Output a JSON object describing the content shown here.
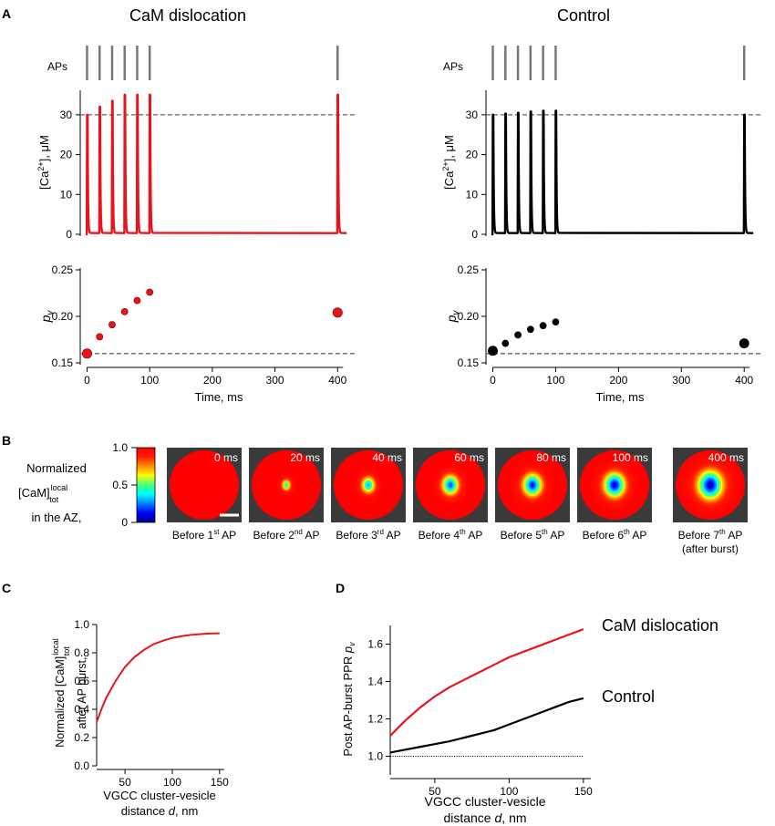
{
  "panel_labels": {
    "A": "A",
    "B": "B",
    "C": "C",
    "D": "D"
  },
  "colors": {
    "cam": "#e8141c",
    "control": "#000000",
    "ref_line": "#666666",
    "heatmap_bg": "#3a3a3a"
  },
  "chart_data": [
    {
      "id": "A_cam_ca",
      "type": "line",
      "title": "CaM dislocation",
      "row_label": "APs",
      "ap_times": [
        0,
        20,
        40,
        60,
        80,
        100,
        400
      ],
      "ylabel": "[Ca2+], μM",
      "xlim": [
        -8,
        420
      ],
      "ylim": [
        0,
        35
      ],
      "yticks": [
        0,
        10,
        20,
        30
      ],
      "ytick_labels": [
        "0",
        "10",
        "20",
        "30"
      ],
      "reference_y": 30,
      "peaks": [
        30,
        32,
        33.5,
        35,
        35,
        35,
        35
      ],
      "color": "#e8141c"
    },
    {
      "id": "A_control_ca",
      "type": "line",
      "title": "Control",
      "row_label": "APs",
      "ap_times": [
        0,
        20,
        40,
        60,
        80,
        100,
        400
      ],
      "ylabel": "[Ca2+], μM",
      "xlim": [
        -8,
        420
      ],
      "ylim": [
        0,
        35
      ],
      "yticks": [
        0,
        10,
        20,
        30
      ],
      "ytick_labels": [
        "0",
        "10",
        "20",
        "30"
      ],
      "reference_y": 30,
      "peaks": [
        30,
        30.3,
        30.5,
        30.8,
        31,
        31,
        30
      ],
      "color": "#000000"
    },
    {
      "id": "A_cam_pv",
      "type": "scatter",
      "ylabel": "pv",
      "xlabel": "Time, ms",
      "xlim": [
        -8,
        420
      ],
      "ylim": [
        0.15,
        0.25
      ],
      "xticks": [
        0,
        100,
        200,
        300,
        400
      ],
      "xtick_labels": [
        "0",
        "100",
        "200",
        "300",
        "400"
      ],
      "yticks": [
        0.15,
        0.2,
        0.25
      ],
      "ytick_labels": [
        "0.15",
        "0.20",
        "0.25"
      ],
      "reference_y": 0.16,
      "x": [
        0,
        20,
        40,
        60,
        80,
        100,
        400
      ],
      "y": [
        0.16,
        0.178,
        0.191,
        0.205,
        0.217,
        0.226,
        0.204
      ],
      "emphasized": [
        0,
        6
      ],
      "color": "#e8141c"
    },
    {
      "id": "A_control_pv",
      "type": "scatter",
      "ylabel": "pv",
      "xlabel": "Time, ms",
      "xlim": [
        -8,
        420
      ],
      "ylim": [
        0.15,
        0.25
      ],
      "xticks": [
        0,
        100,
        200,
        300,
        400
      ],
      "xtick_labels": [
        "0",
        "100",
        "200",
        "300",
        "400"
      ],
      "yticks": [
        0.15,
        0.2,
        0.25
      ],
      "ytick_labels": [
        "0.15",
        "0.20",
        "0.25"
      ],
      "reference_y": 0.16,
      "x": [
        0,
        20,
        40,
        60,
        80,
        100,
        400
      ],
      "y": [
        0.163,
        0.171,
        0.18,
        0.186,
        0.19,
        0.194,
        0.171
      ],
      "emphasized": [
        0,
        6
      ],
      "color": "#000000"
    },
    {
      "id": "B_heatmaps",
      "type": "heatmap",
      "ylabel_lines": [
        "Normalized",
        "[CaM]",
        "in the AZ,"
      ],
      "ylabel_sup": "local",
      "ylabel_sub": "tot",
      "colorbar_ticks": [
        0,
        0.5,
        1.0
      ],
      "colorbar_tick_labels": [
        "0",
        "0.5",
        "1.0"
      ],
      "frames": [
        {
          "time": "0 ms",
          "label_pre": "Before 1",
          "label_sup": "st",
          "label_post": " AP",
          "label_extra": "",
          "depletion": 0.0,
          "width": 0.0
        },
        {
          "time": "20 ms",
          "label_pre": "Before 2",
          "label_sup": "nd",
          "label_post": " AP",
          "label_extra": "",
          "depletion": 0.62,
          "width": 0.17
        },
        {
          "time": "40 ms",
          "label_pre": "Before 3",
          "label_sup": "rd",
          "label_post": " AP",
          "label_extra": "",
          "depletion": 0.72,
          "width": 0.24
        },
        {
          "time": "60 ms",
          "label_pre": "Before 4",
          "label_sup": "th",
          "label_post": " AP",
          "label_extra": "",
          "depletion": 0.82,
          "width": 0.29
        },
        {
          "time": "80 ms",
          "label_pre": "Before 5",
          "label_sup": "th",
          "label_post": " AP",
          "label_extra": "",
          "depletion": 0.88,
          "width": 0.33
        },
        {
          "time": "100 ms",
          "label_pre": "Before 6",
          "label_sup": "th",
          "label_post": " AP",
          "label_extra": "",
          "depletion": 0.93,
          "width": 0.36
        },
        {
          "time": "400 ms",
          "label_pre": "Before 7",
          "label_sup": "th",
          "label_post": " AP",
          "label_extra": "(after burst)",
          "depletion": 0.95,
          "width": 0.42
        }
      ]
    },
    {
      "id": "C_cam_vs_distance",
      "type": "line",
      "ylabel_lines": [
        "Normalized [CaM]",
        "after AP burst,"
      ],
      "ylabel_sup": "local",
      "ylabel_sub": "tot",
      "xlabel_lines": [
        "VGCC cluster-vesicle",
        "distance d, nm"
      ],
      "xlim": [
        20,
        155
      ],
      "ylim": [
        0,
        1.0
      ],
      "xticks": [
        50,
        100,
        150
      ],
      "xtick_labels": [
        "50",
        "100",
        "150"
      ],
      "yticks": [
        0,
        0.2,
        0.4,
        0.6,
        0.8,
        1.0
      ],
      "ytick_labels": [
        "0.0",
        "0.2",
        "0.4",
        "0.6",
        "0.8",
        "1.0"
      ],
      "x": [
        20,
        25,
        30,
        40,
        50,
        60,
        70,
        80,
        90,
        100,
        110,
        120,
        130,
        140,
        150
      ],
      "y": [
        0.31,
        0.4,
        0.48,
        0.6,
        0.7,
        0.77,
        0.82,
        0.86,
        0.885,
        0.905,
        0.918,
        0.927,
        0.932,
        0.936,
        0.938
      ],
      "color": "#e8141c"
    },
    {
      "id": "D_ppr_vs_distance",
      "type": "line",
      "ylabel": "Post AP-burst PPR pv",
      "xlabel_lines": [
        "VGCC cluster-vesicle",
        "distance d, nm"
      ],
      "xlim": [
        20,
        155
      ],
      "ylim": [
        0.9,
        1.7
      ],
      "xticks": [
        50,
        100,
        150
      ],
      "xtick_labels": [
        "50",
        "100",
        "150"
      ],
      "yticks": [
        1.0,
        1.2,
        1.4,
        1.6
      ],
      "ytick_labels": [
        "1.0",
        "1.2",
        "1.4",
        "1.6"
      ],
      "reference_y": 1.0,
      "x": [
        20,
        30,
        40,
        50,
        60,
        70,
        80,
        90,
        100,
        110,
        120,
        130,
        140,
        150
      ],
      "series": [
        {
          "name": "CaM dislocation",
          "color": "#e8141c",
          "values": [
            1.11,
            1.19,
            1.26,
            1.32,
            1.37,
            1.41,
            1.45,
            1.49,
            1.53,
            1.56,
            1.59,
            1.62,
            1.65,
            1.68
          ]
        },
        {
          "name": "Control",
          "color": "#000000",
          "values": [
            1.02,
            1.035,
            1.05,
            1.065,
            1.08,
            1.1,
            1.12,
            1.14,
            1.17,
            1.2,
            1.23,
            1.26,
            1.29,
            1.31
          ]
        }
      ]
    }
  ]
}
